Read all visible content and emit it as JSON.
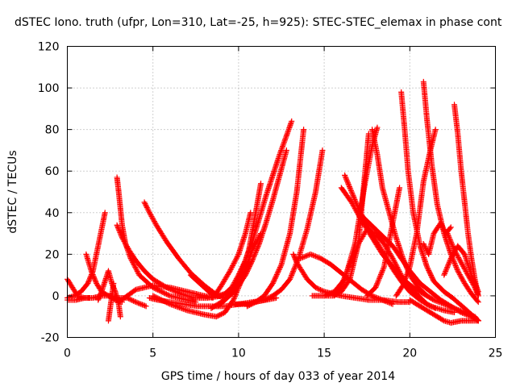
{
  "chart_data": {
    "type": "scatter",
    "title": "dSTEC Iono. truth (ufpr, Lon=310, Lat=-25, h=925): STEC-STEC_elemax in phase cont",
    "xlabel": "GPS time / hours of day 033 of year 2014",
    "ylabel": "dSTEC  / TECUs",
    "xlim": [
      0,
      25
    ],
    "ylim": [
      -20,
      120
    ],
    "xticks": [
      0,
      5,
      10,
      15,
      20,
      25
    ],
    "yticks": [
      -20,
      0,
      20,
      40,
      60,
      80,
      100,
      120
    ],
    "grid": true,
    "marker": "+",
    "color": "#ff0000",
    "series": [
      {
        "x": [
          0.0,
          0.3,
          0.6,
          1.0,
          1.3
        ],
        "y": [
          8,
          4,
          0,
          -1,
          -1
        ]
      },
      {
        "x": [
          0.0,
          0.4,
          0.8,
          1.2,
          1.5,
          1.7,
          2.0,
          2.2
        ],
        "y": [
          -1,
          0,
          2,
          6,
          12,
          20,
          32,
          40
        ]
      },
      {
        "x": [
          0.0,
          0.5,
          1.0,
          1.5,
          2.0,
          2.5,
          3.0,
          3.5,
          4.0,
          4.6
        ],
        "y": [
          -2,
          -2,
          -1,
          -1,
          0,
          0,
          -1,
          -1,
          -3,
          -5
        ]
      },
      {
        "x": [
          1.1,
          1.4,
          1.7,
          2.0,
          2.4,
          2.8,
          3.2
        ],
        "y": [
          20,
          12,
          6,
          2,
          0,
          -2,
          -3
        ]
      },
      {
        "x": [
          1.8,
          2.0,
          2.2,
          2.4,
          2.6,
          2.8,
          3.0,
          3.1
        ],
        "y": [
          -2,
          2,
          7,
          12,
          6,
          2,
          -4,
          -10
        ]
      },
      {
        "x": [
          2.4,
          2.5,
          2.6,
          2.7
        ],
        "y": [
          -12,
          -6,
          0,
          6
        ]
      },
      {
        "x": [
          2.9,
          3.0,
          3.1,
          3.2,
          3.4,
          3.7,
          4.2,
          5.0,
          6.0,
          7.0,
          7.5
        ],
        "y": [
          57,
          50,
          42,
          34,
          25,
          18,
          10,
          4,
          0,
          -2,
          -3
        ]
      },
      {
        "x": [
          2.9,
          3.2,
          3.6,
          4.0,
          4.5,
          5.0,
          5.8,
          6.6,
          7.4,
          8.2,
          9.0,
          9.5
        ],
        "y": [
          34,
          28,
          22,
          17,
          12,
          8,
          4,
          1,
          -1,
          -1,
          0,
          2
        ]
      },
      {
        "x": [
          3.0,
          3.5,
          4.0,
          5.0,
          6.0,
          7.0,
          8.0,
          8.5
        ],
        "y": [
          -3,
          0,
          3,
          5,
          4,
          2,
          0,
          -1
        ]
      },
      {
        "x": [
          4.5,
          4.8,
          5.2,
          5.8,
          6.5,
          7.2,
          8.0,
          8.8,
          9.2
        ],
        "y": [
          45,
          40,
          34,
          26,
          18,
          11,
          5,
          0,
          -1
        ]
      },
      {
        "x": [
          4.8,
          5.3,
          6.0,
          6.8,
          7.6,
          8.4,
          9.2,
          10.0,
          10.8,
          11.6,
          12.2
        ],
        "y": [
          -1,
          -2,
          -3,
          -4,
          -5,
          -5,
          -5,
          -4,
          -3,
          -2,
          -1
        ]
      },
      {
        "x": [
          5.0,
          5.5,
          6.0,
          7.0,
          8.0,
          8.7,
          9.2,
          9.7,
          10.2,
          10.8,
          11.3
        ],
        "y": [
          0,
          -2,
          -4,
          -7,
          -9,
          -10,
          -8,
          -2,
          8,
          22,
          30
        ]
      },
      {
        "x": [
          7.2,
          7.6,
          8.0,
          8.4,
          8.8,
          9.2,
          9.6,
          10.0,
          10.4,
          10.8,
          11.2,
          11.6,
          12.0,
          12.4,
          12.8,
          13.1
        ],
        "y": [
          10,
          7,
          4,
          1,
          0,
          1,
          4,
          10,
          17,
          26,
          37,
          48,
          58,
          68,
          77,
          84
        ]
      },
      {
        "x": [
          8.4,
          8.8,
          9.2,
          9.6,
          10.0,
          10.4,
          10.8,
          11.2,
          11.6,
          12.0,
          12.4,
          12.8
        ],
        "y": [
          -6,
          -4,
          -2,
          1,
          5,
          10,
          17,
          25,
          35,
          46,
          58,
          70
        ]
      },
      {
        "x": [
          8.8,
          9.2,
          9.7,
          10.2,
          10.6,
          11.0,
          11.3
        ],
        "y": [
          -5,
          -2,
          3,
          12,
          22,
          40,
          54
        ]
      },
      {
        "x": [
          8.6,
          9.0,
          9.5,
          10.0,
          10.4,
          10.7
        ],
        "y": [
          0,
          5,
          12,
          20,
          30,
          40
        ]
      },
      {
        "x": [
          9.8,
          10.2,
          10.6,
          11.0,
          11.5,
          12.0,
          12.5,
          13.0,
          13.5,
          14.0,
          14.5,
          14.9
        ],
        "y": [
          -4,
          -4,
          -4,
          -3,
          -2,
          0,
          3,
          8,
          18,
          32,
          50,
          70
        ]
      },
      {
        "x": [
          10.5,
          11.0,
          11.5,
          12.0,
          12.5,
          13.0,
          13.4,
          13.8
        ],
        "y": [
          -5,
          -3,
          0,
          6,
          15,
          30,
          50,
          80
        ]
      },
      {
        "x": [
          13.2,
          13.4,
          13.7,
          14.0,
          14.5,
          15.0,
          15.5,
          16.0,
          16.8,
          17.6,
          18.5,
          19.3,
          20.0
        ],
        "y": [
          20,
          16,
          12,
          8,
          4,
          2,
          1,
          0,
          -1,
          -2,
          -2,
          -3,
          -3
        ]
      },
      {
        "x": [
          13.6,
          14.2,
          14.8,
          15.4,
          16.0,
          16.6,
          17.2,
          17.8,
          18.4,
          19.0
        ],
        "y": [
          18,
          20,
          18,
          15,
          11,
          7,
          3,
          0,
          -2,
          -4
        ]
      },
      {
        "x": [
          14.3,
          15.0,
          15.6,
          16.2,
          16.8,
          17.4,
          17.8,
          18.1
        ],
        "y": [
          0,
          0,
          2,
          8,
          25,
          55,
          72,
          81
        ]
      },
      {
        "x": [
          15.0,
          15.5,
          16.0,
          16.5,
          17.0,
          17.3,
          17.6
        ],
        "y": [
          0,
          0,
          2,
          8,
          25,
          52,
          78
        ]
      },
      {
        "x": [
          15.6,
          16.0,
          16.5,
          17.0,
          17.5,
          18.0,
          18.5,
          19.0,
          19.5,
          20.0,
          20.5,
          21.0,
          21.5
        ],
        "y": [
          0,
          5,
          15,
          25,
          32,
          30,
          25,
          18,
          10,
          4,
          0,
          -4,
          -6
        ]
      },
      {
        "x": [
          16.2,
          16.6,
          17.0,
          17.5,
          18.0,
          18.5,
          19.0,
          19.5,
          20.0,
          20.6,
          21.2,
          22.0,
          22.6
        ],
        "y": [
          58,
          50,
          42,
          34,
          27,
          20,
          13,
          7,
          2,
          -2,
          -5,
          -7,
          -8
        ]
      },
      {
        "x": [
          16.0,
          16.6,
          17.2,
          17.8,
          18.4,
          19.0,
          19.6,
          20.2,
          20.8,
          21.4,
          22.0,
          22.6,
          23.2,
          23.8,
          24.0
        ],
        "y": [
          52,
          45,
          36,
          28,
          20,
          14,
          8,
          4,
          1,
          -2,
          -4,
          -6,
          -8,
          -10,
          -12
        ]
      },
      {
        "x": [
          17.8,
          18.1,
          18.4,
          18.8,
          19.2,
          19.6,
          20.0,
          20.5,
          21.0
        ],
        "y": [
          80,
          68,
          52,
          40,
          28,
          18,
          10,
          4,
          0
        ]
      },
      {
        "x": [
          17.0,
          17.5,
          18.0,
          18.5,
          19.0,
          19.5,
          20.0,
          20.6,
          21.2,
          21.8,
          22.4,
          23.0,
          23.6,
          24.0
        ],
        "y": [
          40,
          36,
          32,
          28,
          24,
          18,
          12,
          6,
          2,
          -2,
          -5,
          -8,
          -10,
          -12
        ]
      },
      {
        "x": [
          17.5,
          18.0,
          18.5,
          19.0,
          19.4
        ],
        "y": [
          0,
          4,
          14,
          35,
          52
        ]
      },
      {
        "x": [
          19.5,
          19.7,
          19.9,
          20.2,
          20.6,
          21.0,
          21.4,
          22.0,
          22.5,
          23.2,
          24.0
        ],
        "y": [
          98,
          80,
          60,
          40,
          24,
          14,
          7,
          2,
          -1,
          -6,
          -12
        ]
      },
      {
        "x": [
          19.2,
          19.6,
          20.0,
          20.4,
          20.8,
          21.2,
          21.5
        ],
        "y": [
          0,
          5,
          14,
          30,
          55,
          70,
          80
        ]
      },
      {
        "x": [
          20.8,
          21.0,
          21.3,
          21.6,
          22.0,
          22.4,
          22.8,
          23.2,
          23.6,
          24.0
        ],
        "y": [
          103,
          85,
          62,
          44,
          30,
          20,
          12,
          6,
          1,
          -3
        ]
      },
      {
        "x": [
          20.0,
          20.4,
          20.8,
          21.2,
          21.6,
          22.0,
          22.4,
          23.0,
          23.6,
          24.0
        ],
        "y": [
          -2,
          -4,
          -6,
          -8,
          -10,
          -12,
          -13,
          -12,
          -12,
          -12
        ]
      },
      {
        "x": [
          20.8,
          21.1,
          21.4,
          21.8,
          22.1,
          22.4
        ],
        "y": [
          25,
          20,
          30,
          35,
          30,
          33
        ]
      },
      {
        "x": [
          22.6,
          22.8,
          23.0,
          23.2,
          23.4,
          23.6,
          23.8,
          24.0
        ],
        "y": [
          92,
          78,
          60,
          45,
          30,
          18,
          8,
          0
        ]
      },
      {
        "x": [
          22.2,
          22.6,
          23.0,
          23.4,
          23.8,
          24.0
        ],
        "y": [
          30,
          22,
          16,
          10,
          4,
          0
        ]
      },
      {
        "x": [
          22.0,
          22.4,
          22.8,
          23.2,
          23.6,
          24.0
        ],
        "y": [
          10,
          18,
          24,
          20,
          10,
          2
        ]
      }
    ]
  }
}
